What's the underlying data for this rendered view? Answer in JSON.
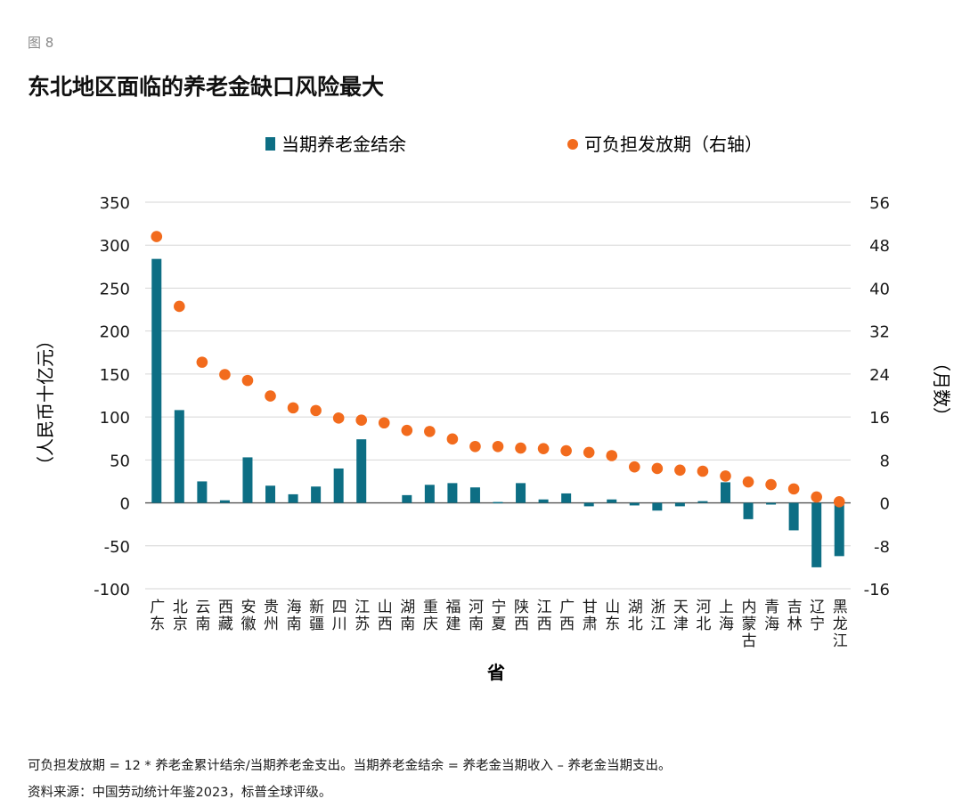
{
  "figure_label": "图 8",
  "title": "东北地区面临的养老金缺口风险最大",
  "notes": {
    "definition": "可负担发放期 = 12 * 养老金累计结余/当期养老金支出。当期养老金结余 = 养老金当期收入 – 养老金当期支出。",
    "source": "资料来源：中国劳动统计年鉴2023，标普全球评级。"
  },
  "colors": {
    "bar": "#0d6e84",
    "dot": "#f26b1d",
    "grid": "#d6d6d6",
    "text": "#1a1a1a"
  },
  "chart_data": {
    "type": "bar",
    "title": "",
    "xlabel": "省",
    "ylabel": "（人民币十亿元）",
    "y2label": "（月数）",
    "ylim": [
      -100,
      350
    ],
    "y2lim": [
      -16,
      56
    ],
    "yticks": [
      -100,
      -50,
      0,
      50,
      100,
      150,
      200,
      250,
      300,
      350
    ],
    "y2ticks": [
      -16,
      -8,
      0,
      8,
      16,
      24,
      32,
      40,
      48,
      56
    ],
    "grid": true,
    "legend_position": "top",
    "categories": [
      "广东",
      "北京",
      "云南",
      "西藏",
      "安徽",
      "贵州",
      "海南",
      "新疆",
      "四川",
      "江苏",
      "山西",
      "湖南",
      "重庆",
      "福建",
      "河南",
      "宁夏",
      "陕西",
      "江西",
      "广西",
      "甘肃",
      "山东",
      "湖北",
      "浙江",
      "天津",
      "河北",
      "上海",
      "内蒙古",
      "青海",
      "吉林",
      "辽宁",
      "黑龙江"
    ],
    "series": [
      {
        "name": "当期养老金结余",
        "kind": "bar",
        "axis": "left",
        "values": [
          284,
          108,
          25,
          3,
          53,
          20,
          10,
          19,
          40,
          74,
          0,
          9,
          21,
          23,
          18,
          1,
          23,
          4,
          11,
          -4,
          4,
          -3,
          -9,
          -4,
          2,
          24,
          -19,
          -2,
          -32,
          -75,
          -62
        ]
      },
      {
        "name": "可负担发放期（右轴）",
        "kind": "dot",
        "axis": "right",
        "values": [
          49.6,
          36.6,
          26.2,
          23.9,
          22.8,
          19.9,
          17.7,
          17.2,
          15.8,
          15.4,
          14.9,
          13.5,
          13.3,
          11.9,
          10.5,
          10.5,
          10.2,
          10.1,
          9.7,
          9.4,
          8.8,
          6.7,
          6.4,
          6.1,
          5.9,
          5.0,
          3.9,
          3.4,
          2.6,
          1.1,
          0.2
        ]
      }
    ]
  }
}
